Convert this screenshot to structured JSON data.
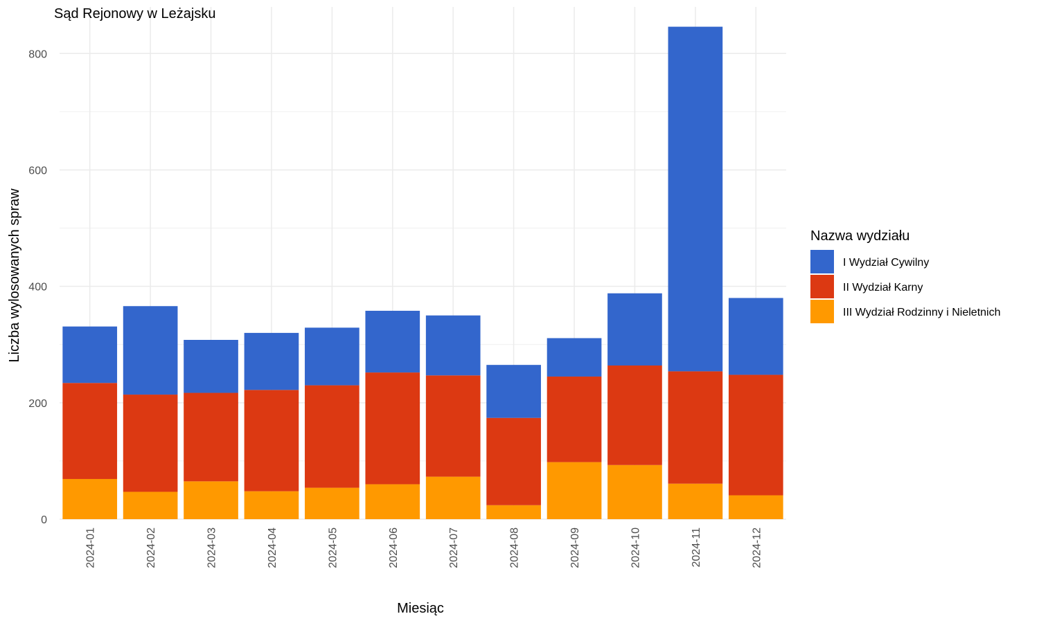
{
  "chart_data": {
    "type": "bar",
    "stacked": true,
    "title": "Sąd Rejonowy w Leżajsku",
    "xlabel": "Miesiąc",
    "ylabel": "Liczba wylosowanych spraw",
    "ylim": [
      0,
      880
    ],
    "yticks": [
      0,
      200,
      400,
      600,
      800
    ],
    "grid": true,
    "legend_title": "Nazwa wydziału",
    "legend_position": "right",
    "categories": [
      "2024-01",
      "2024-02",
      "2024-03",
      "2024-04",
      "2024-05",
      "2024-06",
      "2024-07",
      "2024-08",
      "2024-09",
      "2024-10",
      "2024-11",
      "2024-12"
    ],
    "series": [
      {
        "name": "III Wydział Rodzinny i Nieletnich",
        "color": "#FF9900",
        "values": [
          69,
          47,
          65,
          48,
          54,
          60,
          73,
          24,
          98,
          93,
          61,
          41
        ]
      },
      {
        "name": "II Wydział Karny",
        "color": "#DC3912",
        "values": [
          165,
          167,
          152,
          174,
          176,
          192,
          174,
          150,
          147,
          171,
          193,
          207
        ]
      },
      {
        "name": "I Wydział Cywilny",
        "color": "#3366CC",
        "values": [
          97,
          152,
          91,
          98,
          99,
          106,
          103,
          91,
          66,
          124,
          592,
          132
        ]
      }
    ],
    "legend_order": [
      "I Wydział Cywilny",
      "II Wydział Karny",
      "III Wydział Rodzinny i Nieletnich"
    ]
  }
}
